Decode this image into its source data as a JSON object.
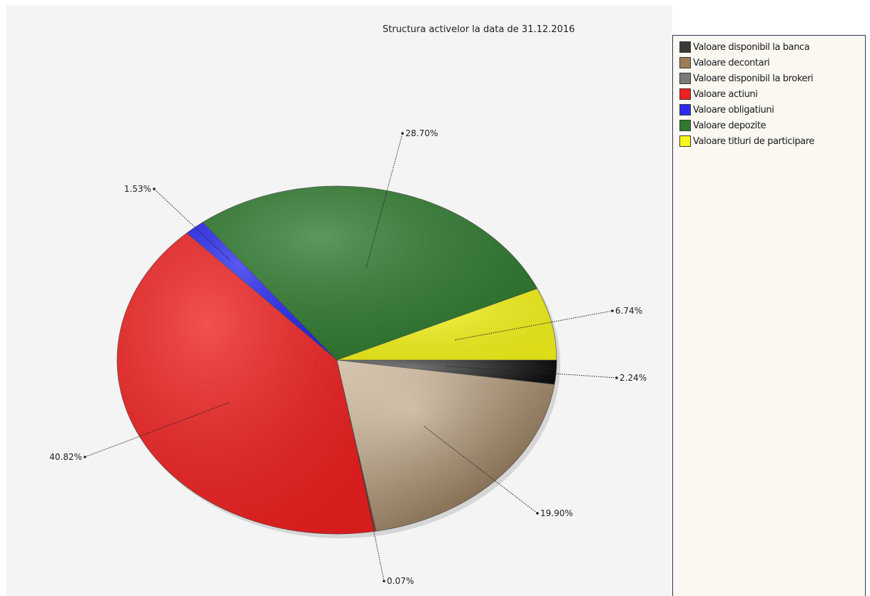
{
  "chart_data": {
    "type": "pie",
    "title": "Structura activelor la data de 31.12.2016",
    "categories": [
      "Valoare disponibil la banca",
      "Valoare decontari",
      "Valoare disponibil la brokeri",
      "Valoare actiuni",
      "Valoare obligatiuni",
      "Valoare depozite",
      "Valoare titluri de participare"
    ],
    "values": [
      2.24,
      19.9,
      0.07,
      40.82,
      1.53,
      28.7,
      6.74
    ],
    "data_labels": [
      "2.24%",
      "19.90%",
      "0.07%",
      "40.82%",
      "1.53%",
      "28.70%",
      "6.74%"
    ],
    "colors": [
      "#2a2a2a",
      "#9c7e56",
      "#8a8a8a",
      "#ee2020",
      "#2a2af0",
      "#2f7a2f",
      "#f4f41c"
    ],
    "legend_position": "right",
    "start_angle_deg": 0,
    "direction": "clockwise"
  },
  "legend": {
    "items": [
      {
        "label": "Valoare disponibil la banca",
        "color": "#3a3a3a"
      },
      {
        "label": "Valoare decontari",
        "color": "#9c7e56"
      },
      {
        "label": "Valoare disponibil la brokeri",
        "color": "#7a7a7a"
      },
      {
        "label": "Valoare actiuni",
        "color": "#ee2020"
      },
      {
        "label": "Valoare obligatiuni",
        "color": "#2a2af0"
      },
      {
        "label": "Valoare depozite",
        "color": "#2f7a2f"
      },
      {
        "label": "Valoare titluri de participare",
        "color": "#f8f820"
      }
    ]
  }
}
